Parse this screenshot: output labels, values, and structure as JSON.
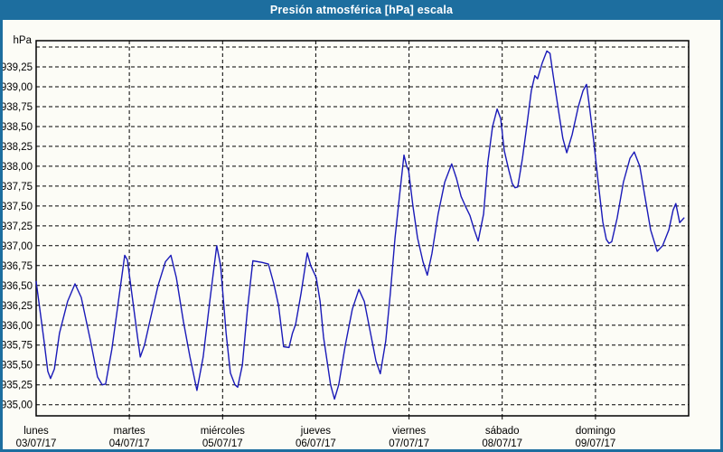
{
  "window": {
    "title": "Presión atmosférica [hPa] escala"
  },
  "colors": {
    "titlebar_bg": "#1d6e9f",
    "frame_border": "#1d6e9f",
    "title_text": "#ffffff",
    "background": "#fcfcf6",
    "plot_line": "#1a1ab8",
    "grid_line": "#000000",
    "plot_border": "#000000",
    "axis_text": "#000000"
  },
  "chart_data": {
    "type": "line",
    "title": "Presión atmosférica [hPa] escala",
    "unit_label": "hPa",
    "grid": true,
    "legend": "none",
    "x_axis": {
      "hours_span": 168,
      "days": [
        {
          "name": "lunes",
          "date": "03/07/17"
        },
        {
          "name": "martes",
          "date": "04/07/17"
        },
        {
          "name": "miércoles",
          "date": "05/07/17"
        },
        {
          "name": "jueves",
          "date": "06/07/17"
        },
        {
          "name": "viernes",
          "date": "07/07/17"
        },
        {
          "name": "sábado",
          "date": "08/07/17"
        },
        {
          "name": "domingo",
          "date": "09/07/17"
        }
      ]
    },
    "y_axis": {
      "tick_values": [
        935.0,
        935.25,
        935.5,
        935.75,
        936.0,
        936.25,
        936.5,
        936.75,
        937.0,
        937.25,
        937.5,
        937.75,
        938.0,
        938.25,
        938.5,
        938.75,
        939.0,
        939.25
      ],
      "tick_labels": [
        "935,00",
        "935,25",
        "935,50",
        "935,75",
        "936,00",
        "936,25",
        "936,50",
        "936,75",
        "937,00",
        "937,25",
        "937,50",
        "937,75",
        "938,00",
        "938,25",
        "938,50",
        "938,75",
        "939,00",
        "939,25"
      ],
      "grid_min": 935.0,
      "grid_max": 939.5,
      "grid_step": 0.25,
      "ylim": [
        935.0,
        939.5
      ]
    },
    "series": [
      {
        "name": "Presión atmosférica",
        "units": "hPa",
        "x_units": "hours since lunes 03/07/17 00:00",
        "points": [
          [
            0.0,
            936.55
          ],
          [
            1.9,
            935.85
          ],
          [
            3.0,
            935.42
          ],
          [
            3.7,
            935.33
          ],
          [
            4.7,
            935.45
          ],
          [
            6.0,
            935.9
          ],
          [
            8.1,
            936.3
          ],
          [
            10.0,
            936.52
          ],
          [
            11.6,
            936.35
          ],
          [
            14.0,
            935.8
          ],
          [
            15.8,
            935.35
          ],
          [
            17.0,
            935.25
          ],
          [
            17.9,
            935.26
          ],
          [
            19.5,
            935.7
          ],
          [
            20.9,
            936.2
          ],
          [
            22.8,
            936.88
          ],
          [
            23.5,
            936.82
          ],
          [
            24.9,
            936.3
          ],
          [
            26.1,
            935.85
          ],
          [
            26.8,
            935.6
          ],
          [
            27.9,
            935.75
          ],
          [
            29.5,
            936.1
          ],
          [
            31.4,
            936.5
          ],
          [
            33.3,
            936.8
          ],
          [
            34.7,
            936.88
          ],
          [
            36.1,
            936.6
          ],
          [
            37.9,
            936.05
          ],
          [
            39.6,
            935.6
          ],
          [
            41.4,
            935.18
          ],
          [
            43.0,
            935.6
          ],
          [
            44.7,
            936.3
          ],
          [
            46.5,
            937.0
          ],
          [
            47.5,
            936.75
          ],
          [
            48.9,
            935.9
          ],
          [
            50.0,
            935.4
          ],
          [
            51.2,
            935.25
          ],
          [
            51.9,
            935.22
          ],
          [
            53.1,
            935.5
          ],
          [
            54.4,
            936.2
          ],
          [
            55.8,
            936.81
          ],
          [
            58.2,
            936.79
          ],
          [
            59.8,
            936.77
          ],
          [
            61.2,
            936.52
          ],
          [
            62.4,
            936.25
          ],
          [
            63.7,
            935.73
          ],
          [
            65.1,
            935.72
          ],
          [
            66.0,
            935.9
          ],
          [
            66.8,
            936.01
          ],
          [
            68.2,
            936.4
          ],
          [
            69.8,
            936.91
          ],
          [
            70.7,
            936.75
          ],
          [
            72.1,
            936.6
          ],
          [
            73.1,
            936.3
          ],
          [
            74.0,
            935.85
          ],
          [
            75.8,
            935.25
          ],
          [
            76.8,
            935.07
          ],
          [
            77.9,
            935.25
          ],
          [
            79.6,
            935.75
          ],
          [
            81.4,
            936.2
          ],
          [
            83.1,
            936.45
          ],
          [
            84.5,
            936.3
          ],
          [
            86.1,
            935.9
          ],
          [
            87.5,
            935.55
          ],
          [
            88.6,
            935.39
          ],
          [
            90.0,
            935.8
          ],
          [
            91.2,
            936.4
          ],
          [
            92.4,
            937.1
          ],
          [
            93.5,
            937.6
          ],
          [
            94.7,
            938.14
          ],
          [
            95.4,
            938.0
          ],
          [
            95.9,
            937.95
          ],
          [
            97.0,
            937.5
          ],
          [
            98.2,
            937.1
          ],
          [
            99.6,
            936.8
          ],
          [
            100.7,
            936.63
          ],
          [
            101.9,
            936.9
          ],
          [
            103.5,
            937.4
          ],
          [
            105.2,
            937.8
          ],
          [
            107.0,
            938.03
          ],
          [
            108.2,
            937.85
          ],
          [
            109.4,
            937.62
          ],
          [
            110.5,
            937.5
          ],
          [
            111.7,
            937.38
          ],
          [
            112.8,
            937.2
          ],
          [
            113.8,
            937.06
          ],
          [
            115.2,
            937.4
          ],
          [
            116.3,
            938.05
          ],
          [
            117.5,
            938.5
          ],
          [
            118.7,
            938.72
          ],
          [
            119.6,
            938.6
          ],
          [
            120.5,
            938.2
          ],
          [
            121.7,
            937.95
          ],
          [
            122.6,
            937.78
          ],
          [
            123.3,
            937.73
          ],
          [
            124.0,
            937.74
          ],
          [
            125.2,
            938.1
          ],
          [
            126.3,
            938.5
          ],
          [
            127.5,
            938.95
          ],
          [
            128.4,
            939.14
          ],
          [
            129.1,
            939.1
          ],
          [
            130.3,
            939.3
          ],
          [
            131.5,
            939.45
          ],
          [
            132.3,
            939.42
          ],
          [
            133.1,
            939.15
          ],
          [
            134.5,
            938.7
          ],
          [
            135.6,
            938.35
          ],
          [
            136.6,
            938.17
          ],
          [
            138.0,
            938.4
          ],
          [
            139.6,
            938.75
          ],
          [
            140.8,
            938.95
          ],
          [
            141.7,
            939.03
          ],
          [
            142.6,
            938.7
          ],
          [
            143.6,
            938.3
          ],
          [
            144.7,
            937.8
          ],
          [
            145.9,
            937.3
          ],
          [
            146.8,
            937.08
          ],
          [
            147.5,
            937.03
          ],
          [
            148.2,
            937.05
          ],
          [
            149.6,
            937.35
          ],
          [
            151.2,
            937.8
          ],
          [
            152.9,
            938.1
          ],
          [
            154.0,
            938.18
          ],
          [
            155.4,
            938.0
          ],
          [
            156.8,
            937.6
          ],
          [
            158.2,
            937.2
          ],
          [
            159.9,
            936.93
          ],
          [
            161.3,
            937.0
          ],
          [
            162.9,
            937.2
          ],
          [
            164.0,
            937.45
          ],
          [
            164.7,
            937.53
          ],
          [
            165.7,
            937.29
          ],
          [
            166.8,
            937.35
          ]
        ]
      }
    ]
  }
}
